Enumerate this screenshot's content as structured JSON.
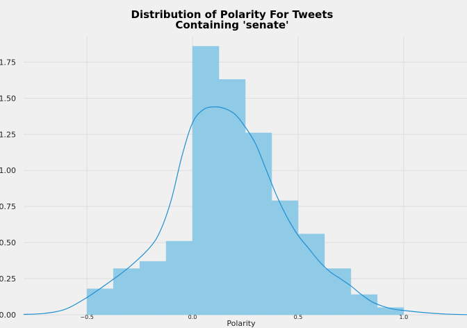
{
  "chart_data": {
    "type": "bar",
    "title_lines": [
      "Distribution of Polarity For Tweets",
      "Containing 'senate'"
    ],
    "xlabel": "Polarity",
    "ylabel": "",
    "xlim": [
      -0.8,
      1.3
    ],
    "ylim": [
      0,
      1.93
    ],
    "x_ticks": [
      -0.5,
      0.0,
      0.5,
      1.0
    ],
    "x_tick_labels": [
      "−0.5",
      "0.0",
      "0.5",
      "1.0"
    ],
    "y_ticks": [
      0.0,
      0.25,
      0.5,
      0.75,
      1.0,
      1.25,
      1.5,
      1.75
    ],
    "y_tick_labels": [
      "0.00",
      "0.25",
      "0.50",
      "0.75",
      "1.00",
      "1.25",
      "1.50",
      "1.75"
    ],
    "grid": true,
    "legend": "none",
    "bin_edges": [
      -0.5,
      -0.375,
      -0.25,
      -0.125,
      0.0,
      0.125,
      0.25,
      0.375,
      0.5,
      0.625,
      0.75,
      0.875,
      1.0
    ],
    "values": [
      0.18,
      0.32,
      0.37,
      0.51,
      1.86,
      1.63,
      1.26,
      0.79,
      0.56,
      0.32,
      0.14,
      0.05
    ],
    "kde": {
      "x": [
        -0.8,
        -0.7,
        -0.6,
        -0.5,
        -0.4,
        -0.3,
        -0.2,
        -0.15,
        -0.1,
        -0.05,
        0.0,
        0.05,
        0.1,
        0.15,
        0.2,
        0.25,
        0.3,
        0.35,
        0.4,
        0.45,
        0.5,
        0.55,
        0.6,
        0.65,
        0.7,
        0.75,
        0.8,
        0.85,
        0.9,
        0.95,
        1.0,
        1.1,
        1.2,
        1.3
      ],
      "y": [
        0.003,
        0.01,
        0.04,
        0.12,
        0.22,
        0.33,
        0.47,
        0.59,
        0.8,
        1.1,
        1.33,
        1.42,
        1.44,
        1.43,
        1.39,
        1.3,
        1.18,
        1.0,
        0.82,
        0.67,
        0.55,
        0.46,
        0.37,
        0.3,
        0.25,
        0.2,
        0.14,
        0.09,
        0.06,
        0.04,
        0.03,
        0.015,
        0.005,
        0.001
      ]
    },
    "colors": {
      "bar": "#8fcae6",
      "bar_edge": "#8fcae6",
      "kde": "#1f8fd2",
      "background": "#f0f0f0",
      "grid": "#dddddd"
    }
  }
}
